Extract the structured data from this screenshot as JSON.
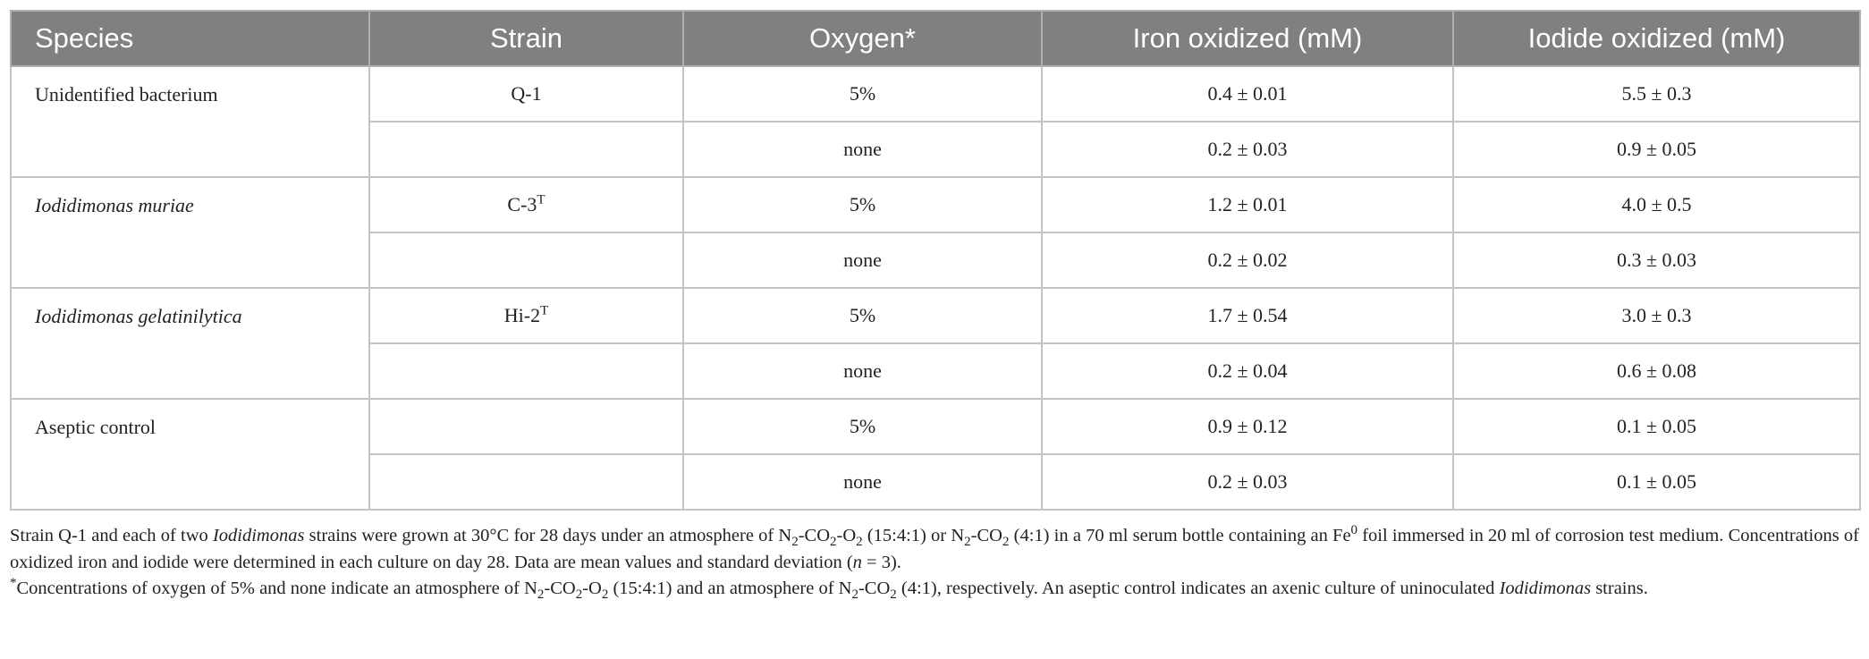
{
  "table": {
    "header": [
      "Species",
      "Strain",
      "Oxygen*",
      "Iron oxidized (mM)",
      "Iodide oxidized (mM)"
    ],
    "groups": [
      {
        "species": [
          {
            "text": "Unidentified bacterium"
          }
        ],
        "rows": [
          {
            "strain": [
              {
                "text": "Q-1"
              }
            ],
            "oxygen": "5%",
            "iron": "0.4 ± 0.01",
            "iodide": "5.5 ± 0.3"
          },
          {
            "oxygen": "none",
            "iron": "0.2 ± 0.03",
            "iodide": "0.9 ± 0.05"
          }
        ]
      },
      {
        "species": [
          {
            "text": "Iodidimonas muriae",
            "style": "italic"
          }
        ],
        "rows": [
          {
            "strain": [
              {
                "text": "C-3"
              },
              {
                "text": "T",
                "style": "sup"
              }
            ],
            "oxygen": "5%",
            "iron": "1.2 ± 0.01",
            "iodide": "4.0 ± 0.5"
          },
          {
            "oxygen": "none",
            "iron": "0.2 ± 0.02",
            "iodide": "0.3 ± 0.03"
          }
        ]
      },
      {
        "species": [
          {
            "text": "Iodidimonas gelatinilytica",
            "style": "italic"
          }
        ],
        "rows": [
          {
            "strain": [
              {
                "text": "Hi-2"
              },
              {
                "text": "T",
                "style": "sup"
              }
            ],
            "oxygen": "5%",
            "iron": "1.7 ± 0.54",
            "iodide": "3.0 ± 0.3"
          },
          {
            "oxygen": "none",
            "iron": "0.2 ± 0.04",
            "iodide": "0.6 ± 0.08"
          }
        ]
      },
      {
        "species": [
          {
            "text": "Aseptic control"
          }
        ],
        "rows": [
          {
            "oxygen": "5%",
            "iron": "0.9 ± 0.12",
            "iodide": "0.1 ± 0.05"
          },
          {
            "oxygen": "none",
            "iron": "0.2 ± 0.03",
            "iodide": "0.1 ± 0.05"
          }
        ]
      }
    ]
  },
  "notes": [
    [
      {
        "text": "Strain Q-1 and each of two "
      },
      {
        "text": "Iodidimonas",
        "style": "italic"
      },
      {
        "text": " strains were grown at 30°C for 28 days under an atmosphere of N"
      },
      {
        "text": "2",
        "style": "sub"
      },
      {
        "text": "-CO"
      },
      {
        "text": "2",
        "style": "sub"
      },
      {
        "text": "-O"
      },
      {
        "text": "2",
        "style": "sub"
      },
      {
        "text": " (15:4:1) or N"
      },
      {
        "text": "2",
        "style": "sub"
      },
      {
        "text": "-CO"
      },
      {
        "text": "2",
        "style": "sub"
      },
      {
        "text": " (4:1) in a 70 ml serum bottle containing an Fe"
      },
      {
        "text": "0",
        "style": "sup"
      },
      {
        "text": " foil immersed in 20 ml of corrosion test medium. Concentrations of oxidized iron and iodide were determined in each culture on day 28. Data are mean values and standard deviation ("
      },
      {
        "text": "n",
        "style": "italic"
      },
      {
        "text": " = 3)."
      }
    ],
    [
      {
        "text": "*",
        "style": "sup"
      },
      {
        "text": "Concentrations of oxygen of 5% and none indicate an atmosphere of N"
      },
      {
        "text": "2",
        "style": "sub"
      },
      {
        "text": "-CO"
      },
      {
        "text": "2",
        "style": "sub"
      },
      {
        "text": "-O"
      },
      {
        "text": "2",
        "style": "sub"
      },
      {
        "text": " (15:4:1) and an atmosphere of N"
      },
      {
        "text": "2",
        "style": "sub"
      },
      {
        "text": "-CO"
      },
      {
        "text": "2",
        "style": "sub"
      },
      {
        "text": " (4:1), respectively. An aseptic control indicates an axenic culture of uninoculated "
      },
      {
        "text": "Iodidimonas",
        "style": "italic"
      },
      {
        "text": " strains."
      }
    ]
  ]
}
